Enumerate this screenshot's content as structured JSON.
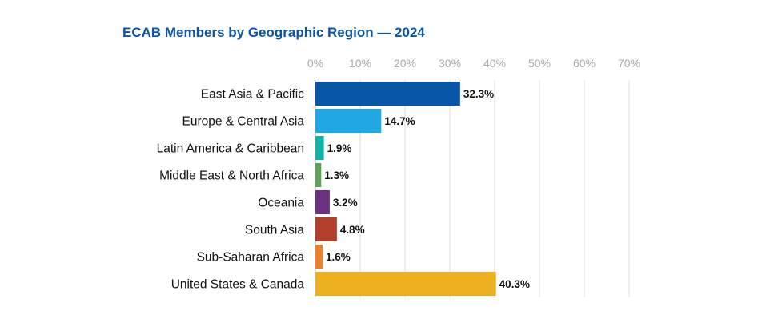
{
  "chart_data": {
    "type": "bar",
    "orientation": "horizontal",
    "title": "ECAB Members by Geographic Region — 2024",
    "xlim": [
      0,
      70
    ],
    "xticks": [
      "0%",
      "10%",
      "20%",
      "30%",
      "40%",
      "50%",
      "60%",
      "70%"
    ],
    "tick_values": [
      0,
      10,
      20,
      30,
      40,
      50,
      60,
      70
    ],
    "grid": true,
    "axis_position": "top",
    "categories": [
      "East Asia & Pacific",
      "Europe & Central Asia",
      "Latin America & Caribbean",
      "Middle East & North Africa",
      "Oceania",
      "South Asia",
      "Sub-Saharan Africa",
      "United States & Canada"
    ],
    "values": [
      32.3,
      14.7,
      1.9,
      1.3,
      3.2,
      4.8,
      1.6,
      40.3
    ],
    "data_labels": [
      "32.3%",
      "14.7%",
      "1.9%",
      "1.3%",
      "3.2%",
      "4.8%",
      "1.6%",
      "40.3%"
    ],
    "colors": [
      "#0756a8",
      "#1fa8e1",
      "#12b2a9",
      "#5fa35a",
      "#6a3280",
      "#b0402a",
      "#f07f2a",
      "#ecb021"
    ]
  }
}
